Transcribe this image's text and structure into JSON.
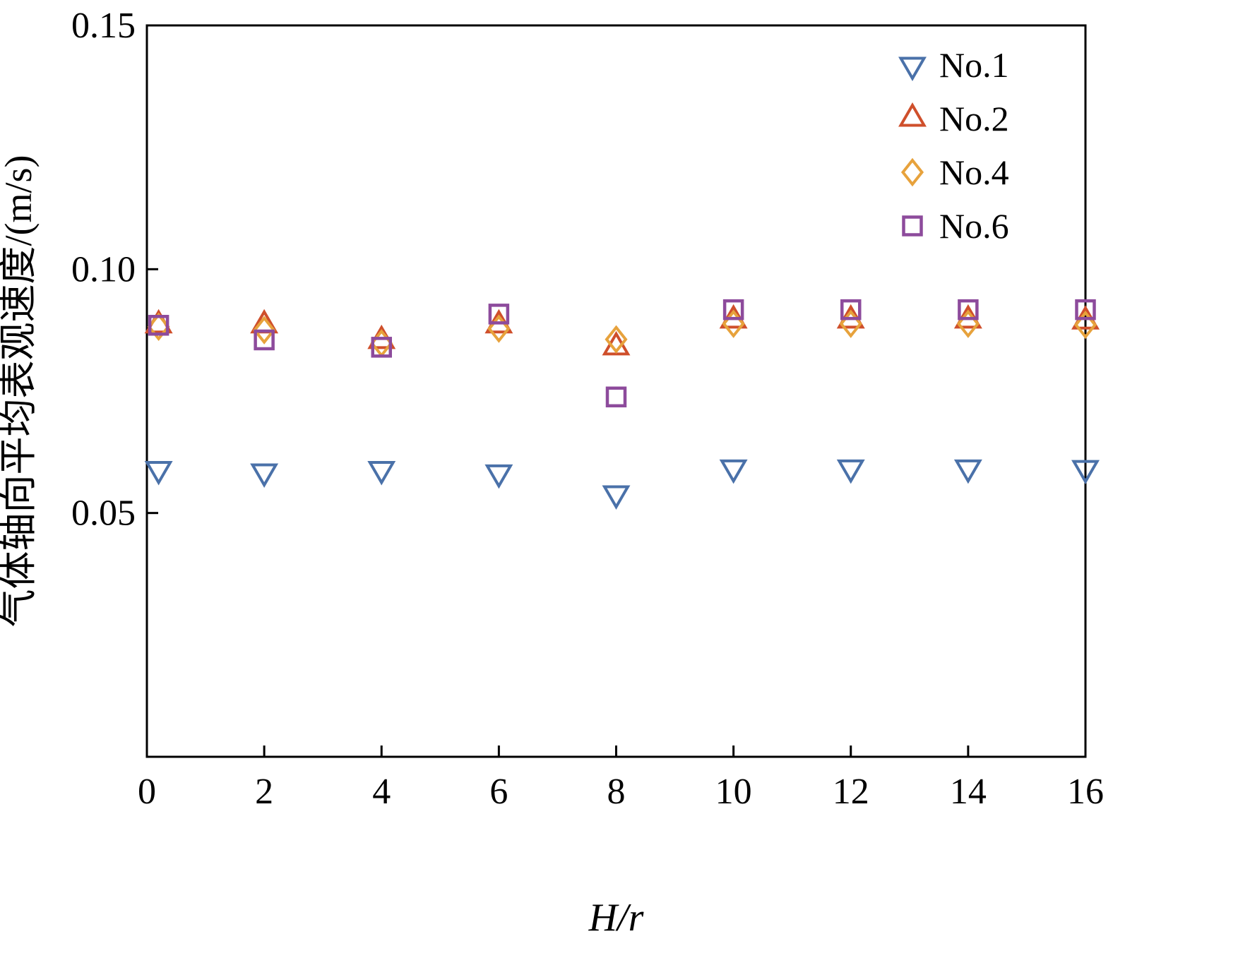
{
  "figure": {
    "background": "#ffffff",
    "frame_color": "#000000"
  },
  "chart_data": {
    "type": "scatter",
    "title": "",
    "xlabel": "H/r",
    "ylabel": "气体轴向平均表观速度/(m/s)",
    "xlim": [
      0,
      16
    ],
    "ylim": [
      0,
      0.15
    ],
    "xticks": [
      0,
      2,
      4,
      6,
      8,
      10,
      12,
      14,
      16
    ],
    "yticks": [
      0.05,
      0.1,
      0.15
    ],
    "ytick_labels": [
      "0.05",
      "0.10",
      "0.15"
    ],
    "grid": false,
    "legend_position": "top-right-inside",
    "x": [
      0.2,
      2,
      4,
      6,
      8,
      10,
      12,
      14,
      16
    ],
    "series": [
      {
        "name": "No.1",
        "marker": "triangle-down",
        "color": "#4a71a9",
        "values": [
          0.059,
          0.0585,
          0.059,
          0.0583,
          0.054,
          0.0593,
          0.0593,
          0.0593,
          0.0592
        ]
      },
      {
        "name": "No.2",
        "marker": "triangle-up",
        "color": "#cf4f2b",
        "values": [
          0.0885,
          0.0885,
          0.0853,
          0.0885,
          0.084,
          0.0895,
          0.0895,
          0.0895,
          0.0893
        ]
      },
      {
        "name": "No.4",
        "marker": "diamond",
        "color": "#e7a23c",
        "values": [
          0.0882,
          0.0875,
          0.0848,
          0.0878,
          0.0856,
          0.0888,
          0.0888,
          0.0888,
          0.0886
        ]
      },
      {
        "name": "No.6",
        "marker": "square",
        "color": "#8d4b9c",
        "values": [
          0.0885,
          0.0855,
          0.084,
          0.0908,
          0.0738,
          0.0917,
          0.0917,
          0.0917,
          0.0917
        ]
      }
    ]
  }
}
